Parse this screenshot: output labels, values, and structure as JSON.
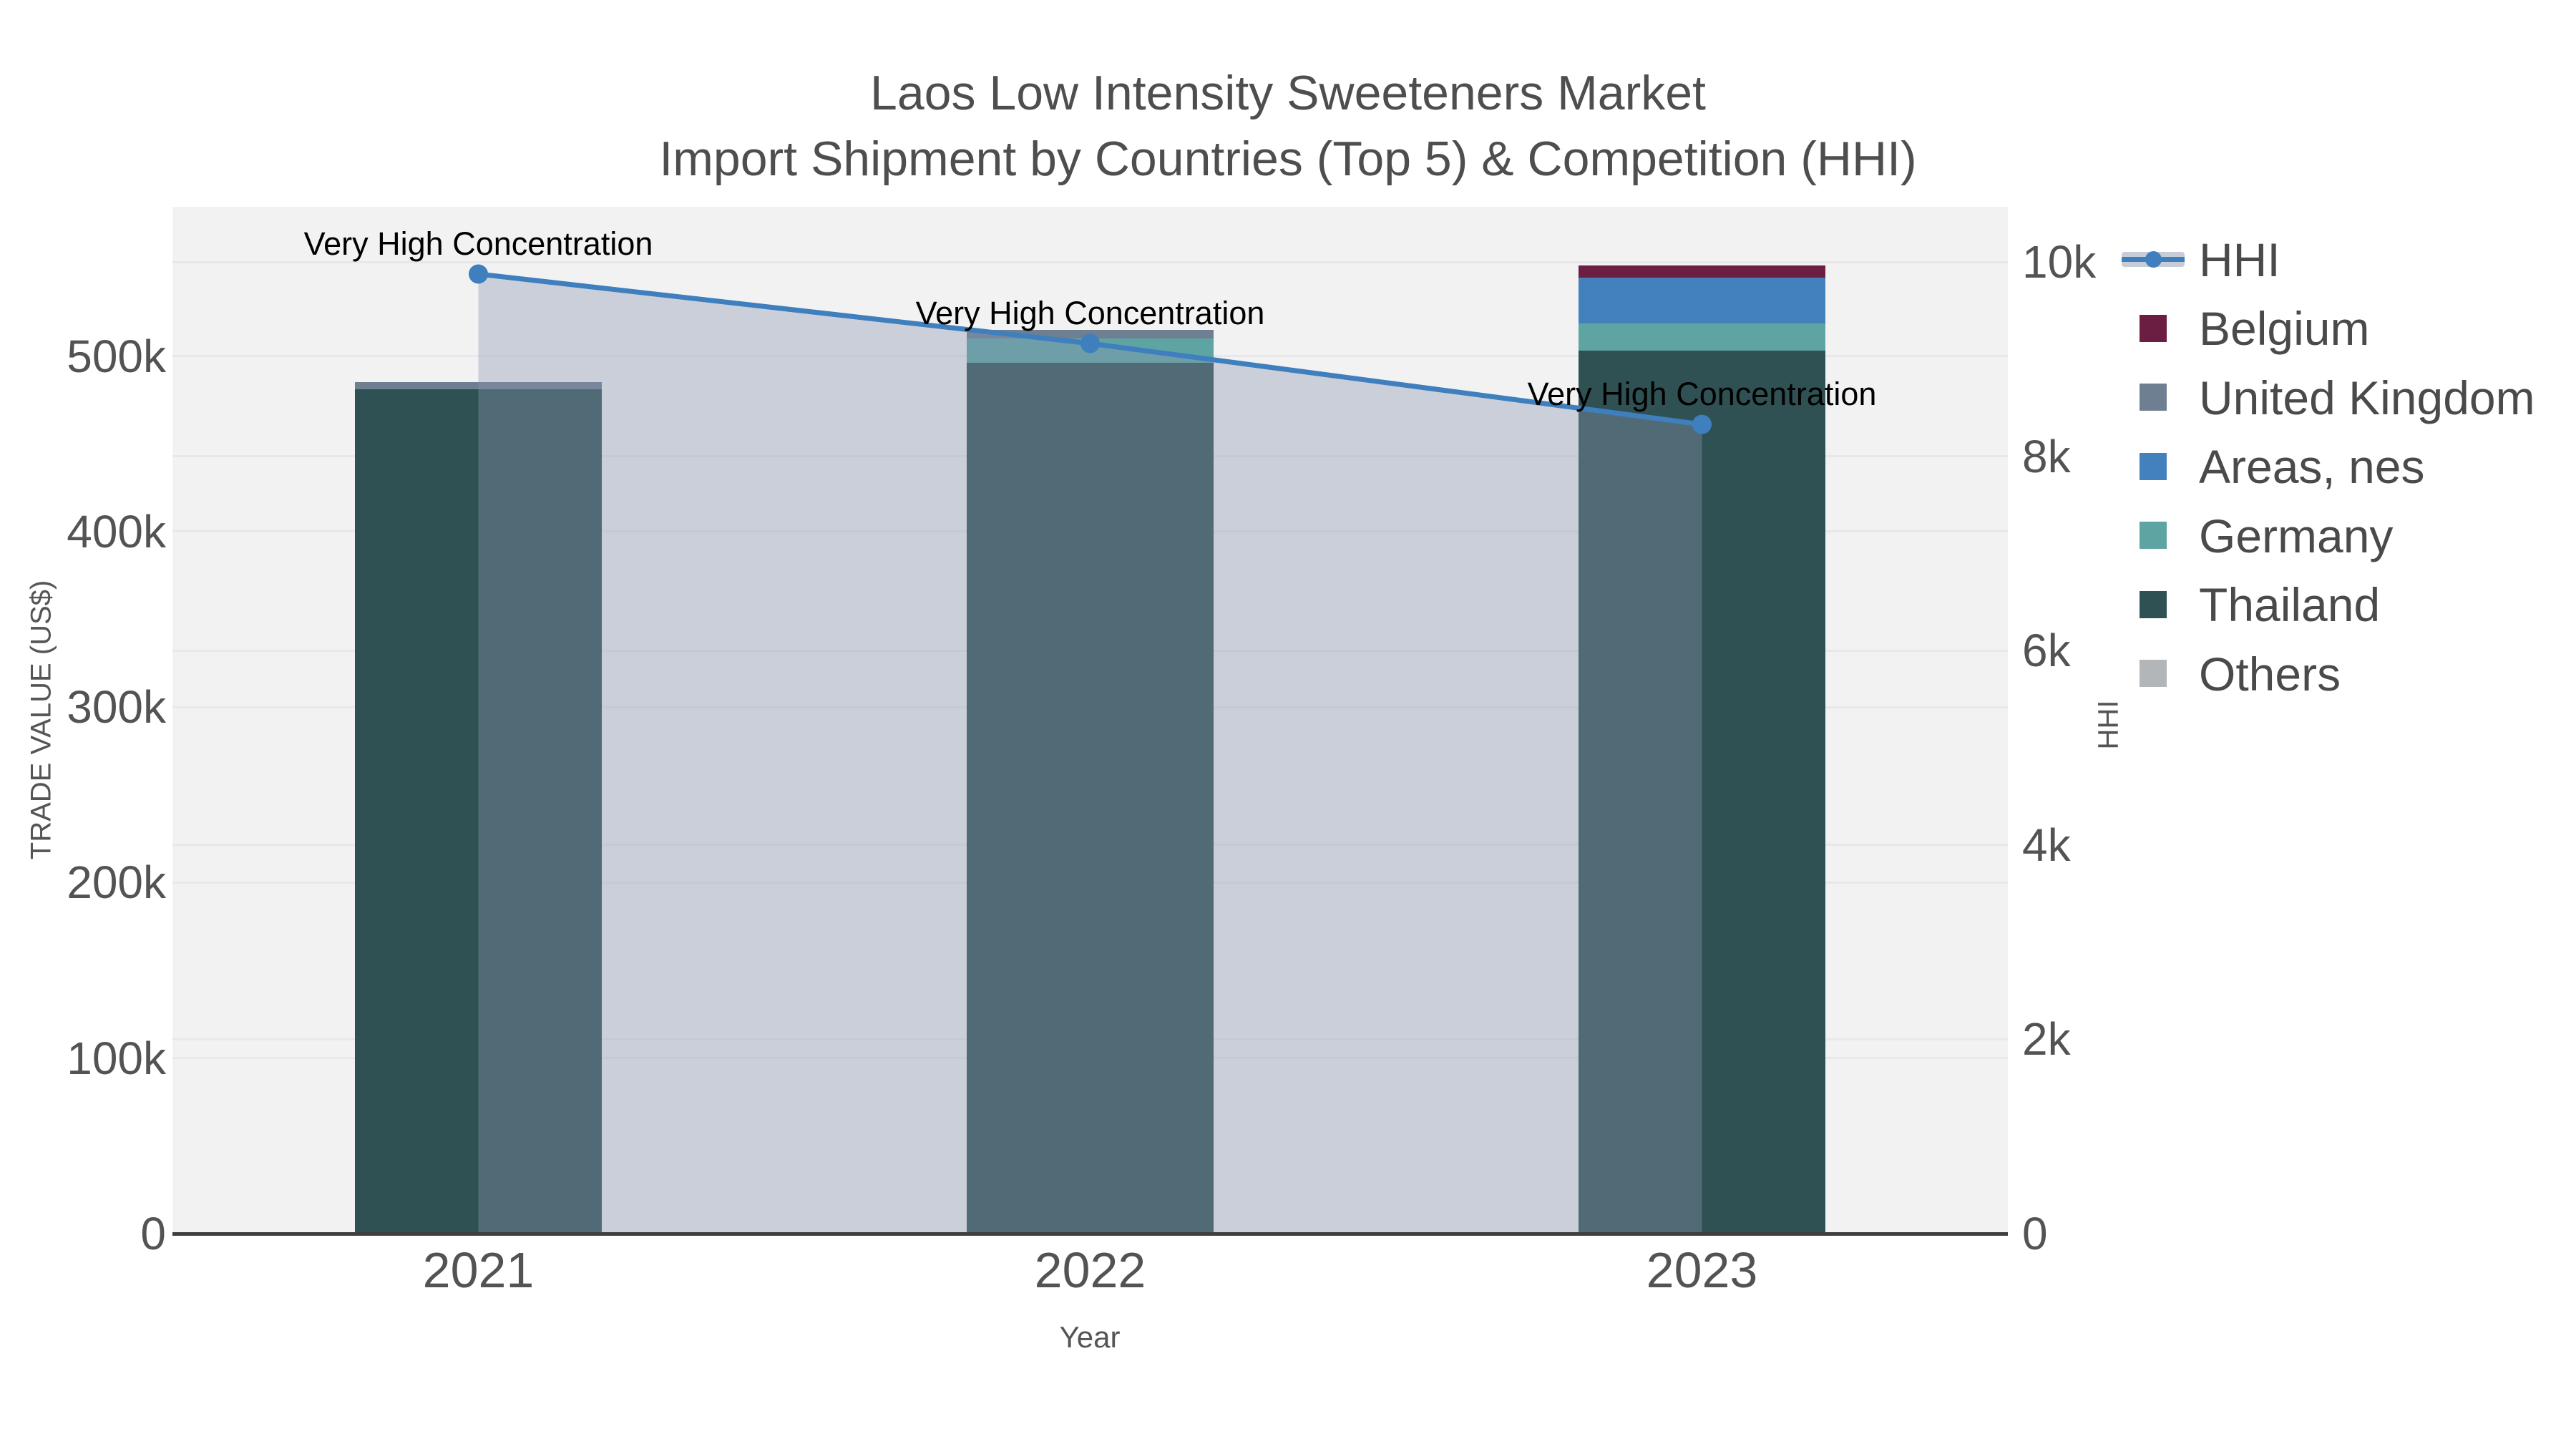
{
  "title": "Laos Low Intensity Sweeteners Market",
  "subtitle": "Import Shipment by Countries (Top 5) & Competition (HHI)",
  "chart_data": {
    "type": "bar+line",
    "categories": [
      "2021",
      "2022",
      "2023"
    ],
    "bar_series": [
      {
        "name": "Belgium",
        "color": "#6b1e41",
        "values": [
          0,
          0,
          7000
        ]
      },
      {
        "name": "United Kingdom",
        "color": "#6e7f91",
        "values": [
          4000,
          5000,
          0
        ]
      },
      {
        "name": "Areas, nes",
        "color": "#4281bc",
        "values": [
          0,
          0,
          26000
        ]
      },
      {
        "name": "Germany",
        "color": "#5ea4a2",
        "values": [
          0,
          14000,
          15500
        ]
      },
      {
        "name": "Thailand",
        "color": "#2f5153",
        "values": [
          481000,
          495000,
          503000
        ]
      },
      {
        "name": "Others",
        "color": "#b2b6b8",
        "values": [
          0,
          1000,
          0
        ]
      }
    ],
    "bar_totals": [
      485000,
      515000,
      551500
    ],
    "stack_order_bottom_to_top": [
      "Others",
      "Thailand",
      "Germany",
      "Areas, nes",
      "United Kingdom",
      "Belgium"
    ],
    "line_series": {
      "name": "HHI",
      "color": "#3f7fbe",
      "area_color": "rgba(136,150,175,0.38)",
      "values": [
        9878,
        9163,
        8330
      ]
    },
    "annotations": [
      {
        "x": "2021",
        "text": "Very High Concentration"
      },
      {
        "x": "2022",
        "text": "Very High Concentration"
      },
      {
        "x": "2023",
        "text": "Very High Concentration"
      }
    ],
    "left_axis": {
      "title": "TRADE VALUE (US$)",
      "range": [
        0,
        585000
      ],
      "ticks": [
        {
          "v": 0,
          "label": "0"
        },
        {
          "v": 100000,
          "label": "100k"
        },
        {
          "v": 200000,
          "label": "200k"
        },
        {
          "v": 300000,
          "label": "300k"
        },
        {
          "v": 400000,
          "label": "400k"
        },
        {
          "v": 500000,
          "label": "500k"
        }
      ]
    },
    "right_axis": {
      "title": "HHI",
      "range": [
        0,
        10570
      ],
      "ticks": [
        {
          "v": 0,
          "label": "0"
        },
        {
          "v": 2000,
          "label": "2k"
        },
        {
          "v": 4000,
          "label": "4k"
        },
        {
          "v": 6000,
          "label": "6k"
        },
        {
          "v": 8000,
          "label": "8k"
        },
        {
          "v": 10000,
          "label": "10k"
        }
      ]
    },
    "x_axis": {
      "title": "Year"
    },
    "legend_order": [
      "HHI",
      "Belgium",
      "United Kingdom",
      "Areas, nes",
      "Germany",
      "Thailand",
      "Others"
    ],
    "grid": true,
    "legend_position": "right"
  },
  "colors": {
    "plot_background": "#f2f2f3",
    "grid_line": "#e8e8ea",
    "axis_line": "#3f3f3f",
    "tick_text": "#535353",
    "title_text": "#4e4e4e"
  }
}
